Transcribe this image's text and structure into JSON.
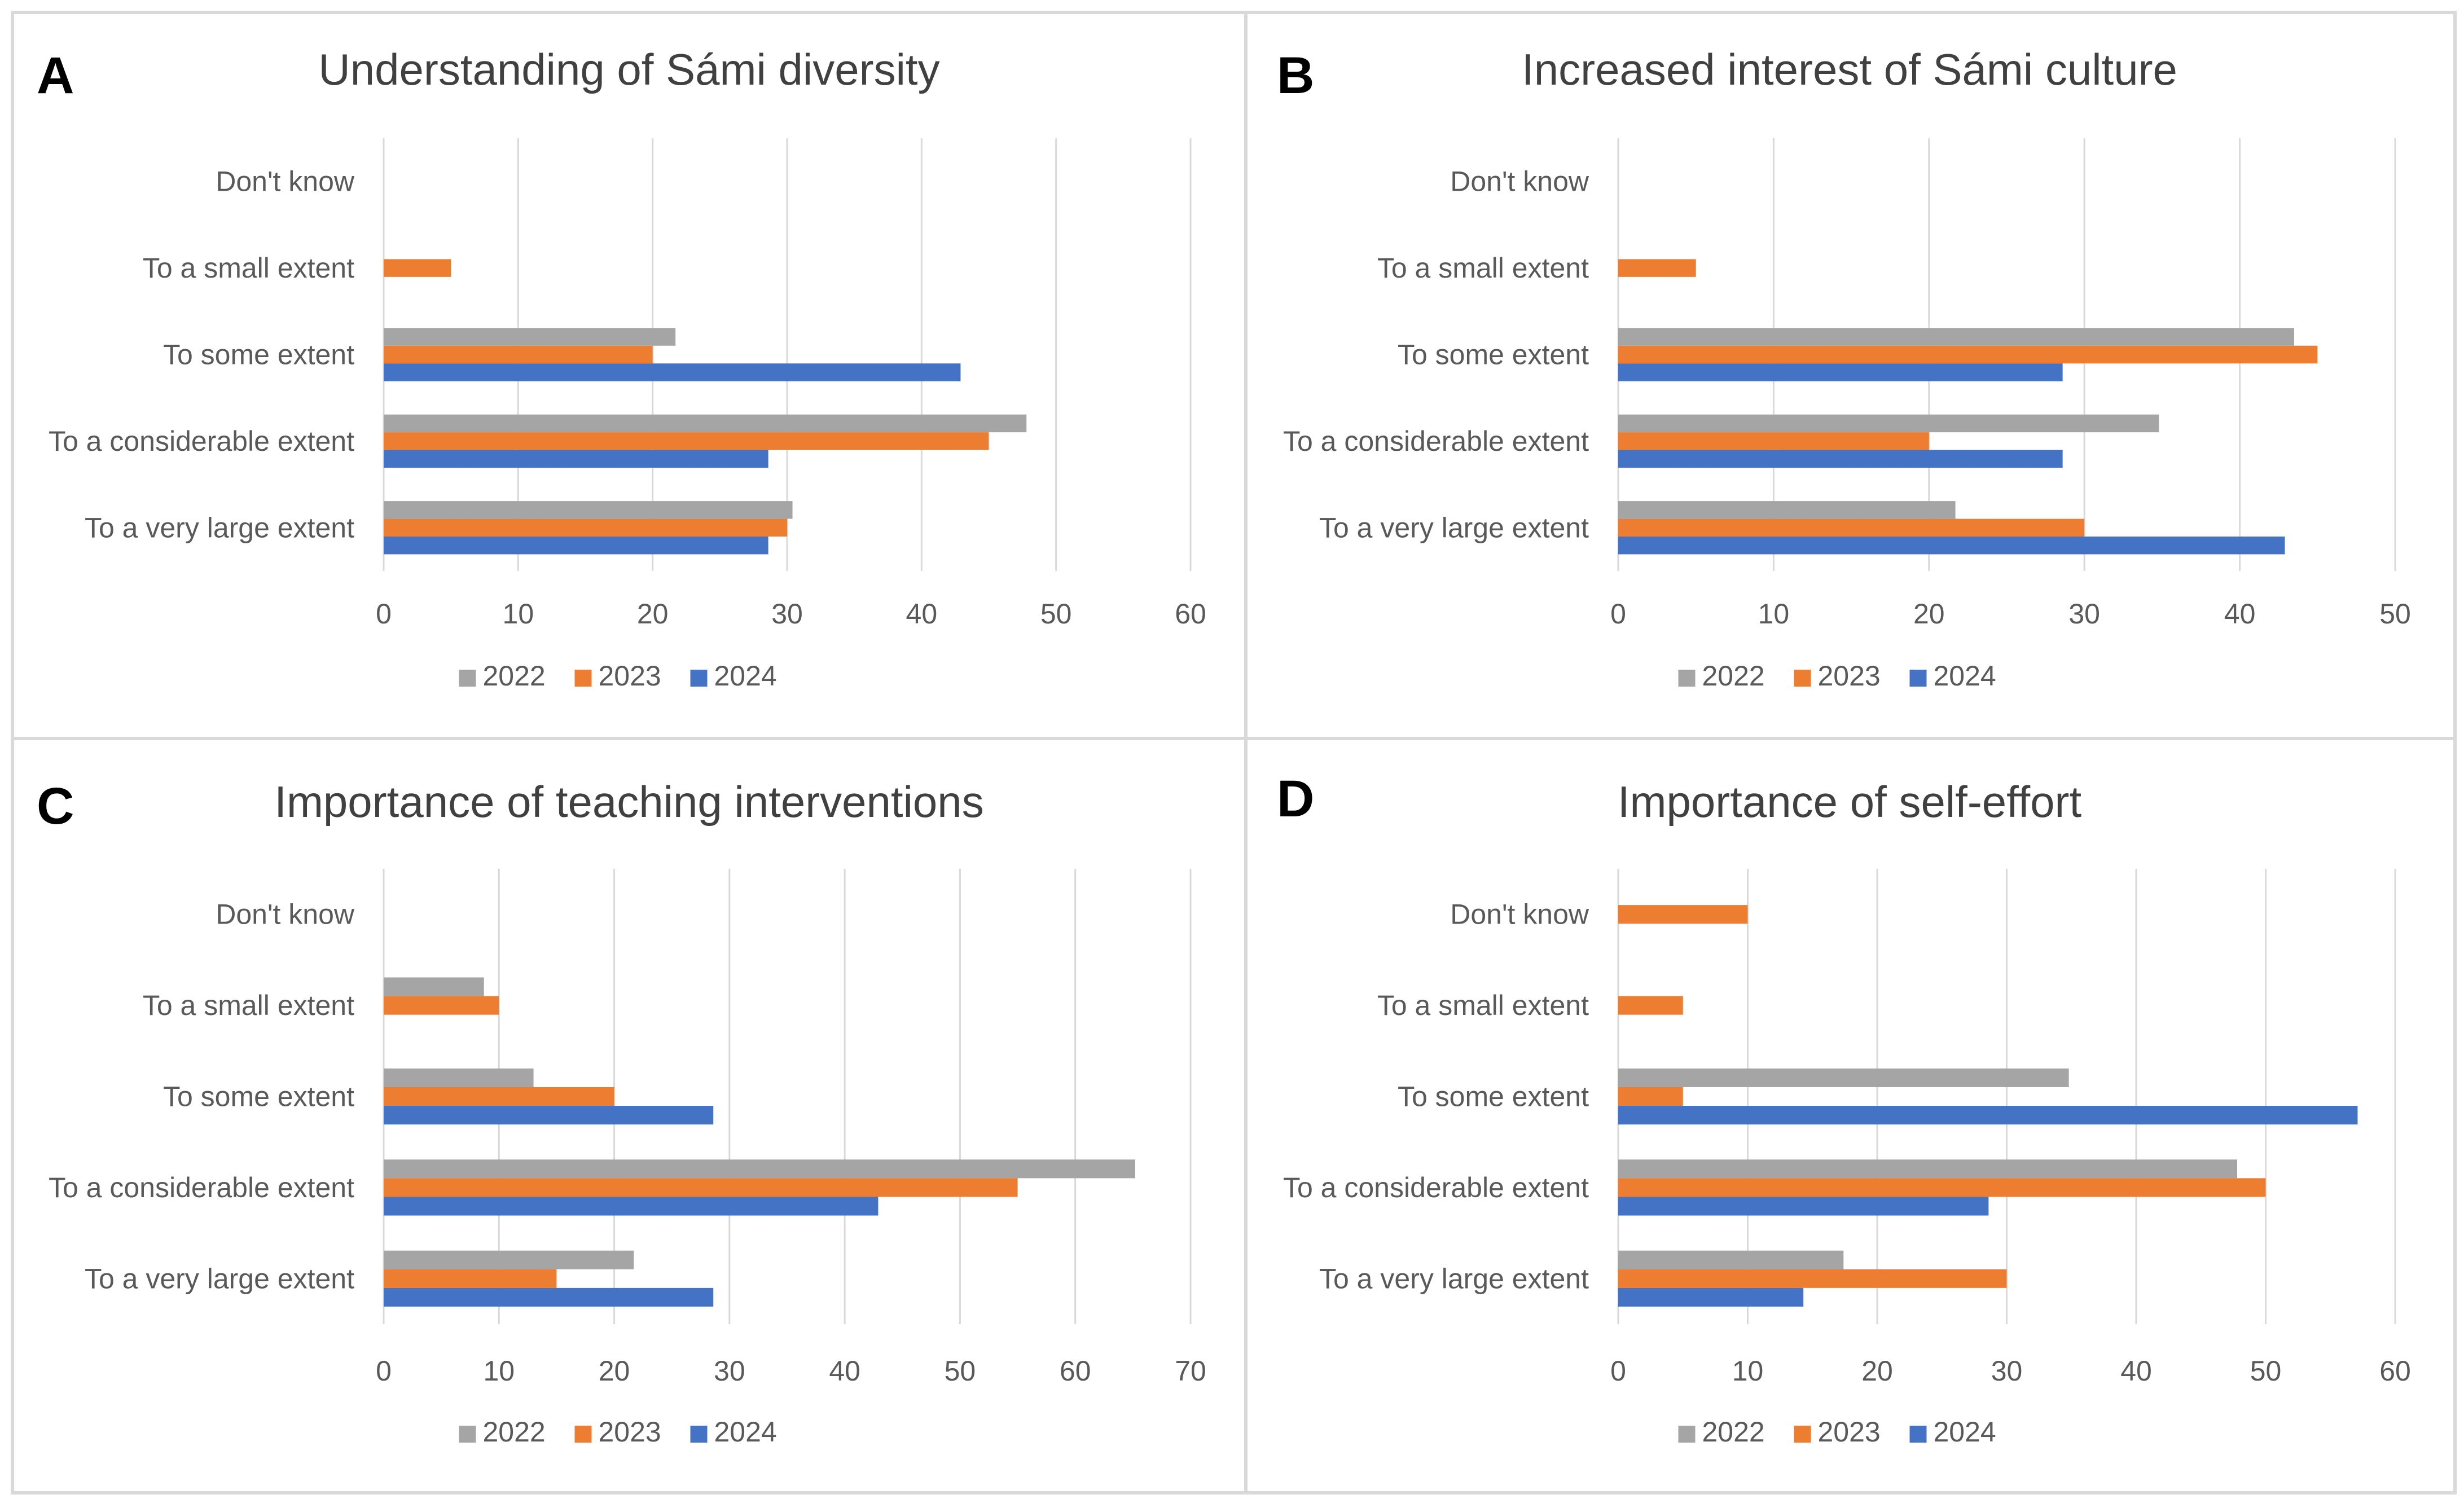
{
  "colors": {
    "2022": "#a5a5a5",
    "2023": "#ed7d31",
    "2024": "#4472c4"
  },
  "chart_data": [
    {
      "panel": "A",
      "type": "bar",
      "orientation": "horizontal",
      "title": "Understanding of Sámi diversity",
      "categories": [
        "Don't know",
        "To a small extent",
        "To some extent",
        "To a considerable extent",
        "To a very large extent"
      ],
      "series": [
        {
          "name": "2022",
          "values": [
            0,
            0,
            21.7,
            47.8,
            30.4
          ]
        },
        {
          "name": "2023",
          "values": [
            0,
            5,
            20,
            45,
            30
          ]
        },
        {
          "name": "2024",
          "values": [
            0,
            0,
            42.9,
            28.6,
            28.6
          ]
        }
      ],
      "xlim": [
        0,
        60
      ],
      "xticks": [
        0,
        10,
        20,
        30,
        40,
        50,
        60
      ],
      "legend": [
        "2022",
        "2023",
        "2024"
      ],
      "legend_position": "bottom",
      "grid": true
    },
    {
      "panel": "B",
      "type": "bar",
      "orientation": "horizontal",
      "title": "Increased interest of Sámi culture",
      "categories": [
        "Don't know",
        "To a small extent",
        "To some extent",
        "To a considerable extent",
        "To a very large extent"
      ],
      "series": [
        {
          "name": "2022",
          "values": [
            0,
            0,
            43.5,
            34.8,
            21.7
          ]
        },
        {
          "name": "2023",
          "values": [
            0,
            5,
            45,
            20,
            30
          ]
        },
        {
          "name": "2024",
          "values": [
            0,
            0,
            28.6,
            28.6,
            42.9
          ]
        }
      ],
      "xlim": [
        0,
        50
      ],
      "xticks": [
        0,
        10,
        20,
        30,
        40,
        50
      ],
      "legend": [
        "2022",
        "2023",
        "2024"
      ],
      "legend_position": "bottom",
      "grid": true
    },
    {
      "panel": "C",
      "type": "bar",
      "orientation": "horizontal",
      "title": "Importance of teaching interventions",
      "categories": [
        "Don't know",
        "To a small extent",
        "To some extent",
        "To a considerable extent",
        "To a very large extent"
      ],
      "series": [
        {
          "name": "2022",
          "values": [
            0,
            8.7,
            13,
            65.2,
            21.7
          ]
        },
        {
          "name": "2023",
          "values": [
            0,
            10,
            20,
            55,
            15
          ]
        },
        {
          "name": "2024",
          "values": [
            0,
            0,
            28.6,
            42.9,
            28.6
          ]
        }
      ],
      "xlim": [
        0,
        70
      ],
      "xticks": [
        0,
        10,
        20,
        30,
        40,
        50,
        60,
        70
      ],
      "legend": [
        "2022",
        "2023",
        "2024"
      ],
      "legend_position": "bottom",
      "grid": true
    },
    {
      "panel": "D",
      "type": "bar",
      "orientation": "horizontal",
      "title": "Importance of self-effort",
      "categories": [
        "Don't know",
        "To a small extent",
        "To some extent",
        "To a considerable extent",
        "To a very large extent"
      ],
      "series": [
        {
          "name": "2022",
          "values": [
            0,
            0,
            34.8,
            47.8,
            17.4
          ]
        },
        {
          "name": "2023",
          "values": [
            10,
            5,
            5,
            50,
            30
          ]
        },
        {
          "name": "2024",
          "values": [
            0,
            0,
            57.1,
            28.6,
            14.3
          ]
        }
      ],
      "xlim": [
        0,
        60
      ],
      "xticks": [
        0,
        10,
        20,
        30,
        40,
        50,
        60
      ],
      "legend": [
        "2022",
        "2023",
        "2024"
      ],
      "legend_position": "bottom",
      "grid": true
    }
  ]
}
